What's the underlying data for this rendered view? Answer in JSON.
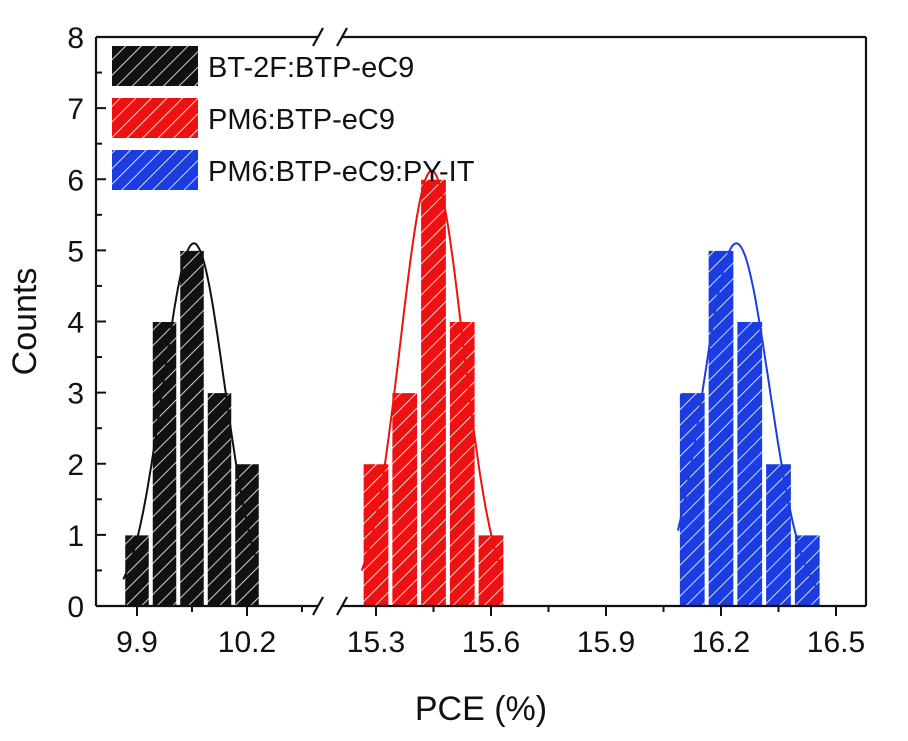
{
  "chart_data": {
    "type": "bar",
    "title": "",
    "xlabel": "PCE (%)",
    "ylabel": "Counts",
    "ylim": [
      0,
      8
    ],
    "yticks": [
      "0",
      "1",
      "2",
      "3",
      "4",
      "5",
      "6",
      "7",
      "8"
    ],
    "x_axis_break": [
      10.4,
      15.1
    ],
    "xticks": [
      {
        "value": 9.9,
        "label": "9.9"
      },
      {
        "value": 10.2,
        "label": "10.2"
      },
      {
        "value": 15.3,
        "label": "15.3"
      },
      {
        "value": 15.6,
        "label": "15.6"
      },
      {
        "value": 15.9,
        "label": "15.9"
      },
      {
        "value": 16.2,
        "label": "16.2"
      },
      {
        "value": 16.5,
        "label": "16.5"
      }
    ],
    "bin_width": 0.075,
    "legend_position": "top-left",
    "grid": false,
    "series": [
      {
        "name": "BT-2F:BTP-eC9",
        "color": "#111111",
        "pattern": "hatched",
        "x": [
          9.9,
          9.975,
          10.05,
          10.125,
          10.2
        ],
        "values": [
          1,
          4,
          5,
          3,
          2
        ],
        "fit": "gaussian"
      },
      {
        "name": "PM6:BTP-eC9",
        "color": "#ee1111",
        "pattern": "hatched",
        "x": [
          15.3,
          15.375,
          15.45,
          15.525,
          15.6
        ],
        "values": [
          2,
          3,
          6,
          4,
          1
        ],
        "fit": "gaussian"
      },
      {
        "name": "PM6:BTP-eC9:PY-IT",
        "color": "#1a3ce0",
        "pattern": "hatched",
        "x": [
          16.125,
          16.2,
          16.275,
          16.35,
          16.425
        ],
        "values": [
          3,
          5,
          4,
          2,
          1
        ],
        "fit": "gaussian"
      }
    ]
  }
}
